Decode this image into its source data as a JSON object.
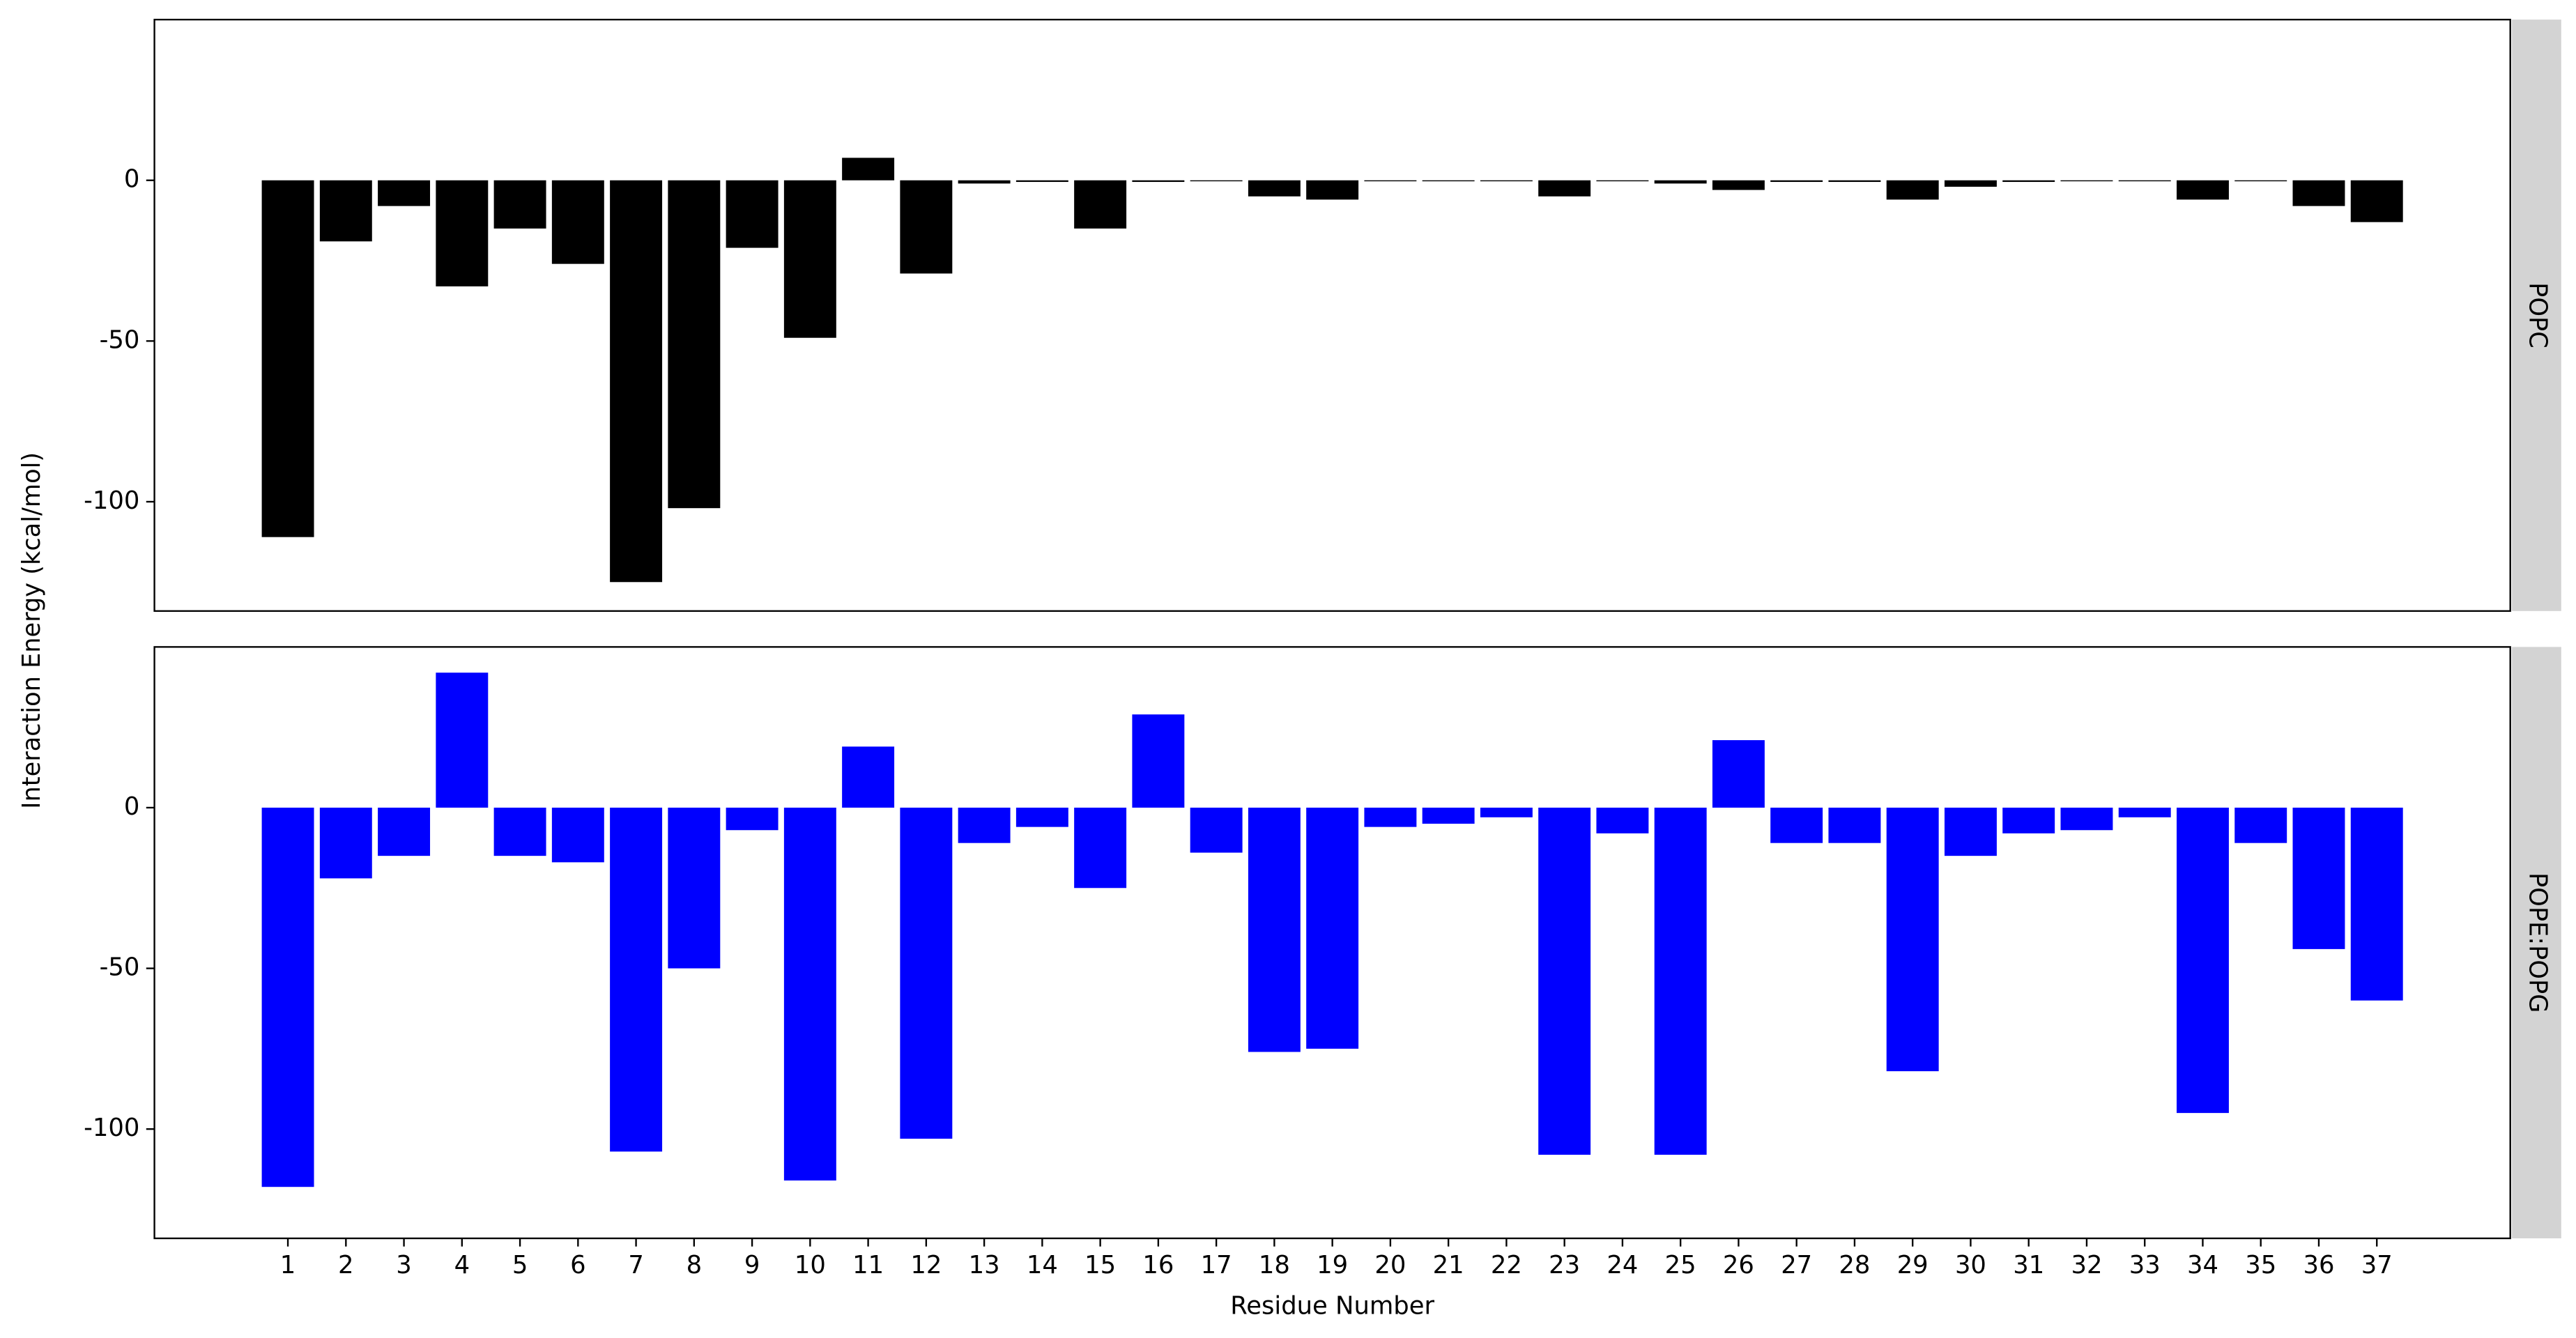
{
  "chart_data": [
    {
      "type": "bar",
      "panel_label": "POPC",
      "ylabel": "Interaction Energy (kcal/mol)",
      "color": "#000000",
      "x": [
        1,
        2,
        3,
        4,
        5,
        6,
        7,
        8,
        9,
        10,
        11,
        12,
        13,
        14,
        15,
        16,
        17,
        18,
        19,
        20,
        21,
        22,
        23,
        24,
        25,
        26,
        27,
        28,
        29,
        30,
        31,
        32,
        33,
        34,
        35,
        36,
        37
      ],
      "values": [
        -111,
        -19,
        -8,
        -33,
        -15,
        -26,
        -125,
        -102,
        -21,
        -49,
        7,
        -29,
        -1,
        -0.5,
        -15,
        -0.5,
        0,
        -5,
        -6,
        0,
        0,
        -0.3,
        -5,
        0,
        -1,
        -3,
        -0.5,
        -0.5,
        -6,
        -2,
        -0.5,
        0,
        -0.3,
        -6,
        -0.3,
        -8,
        -13
      ],
      "xlim": [
        -1.3,
        39.3
      ],
      "ylim": [
        -134,
        50
      ],
      "yticks": [
        -100,
        -50,
        0
      ]
    },
    {
      "type": "bar",
      "panel_label": "POPE:POPG",
      "xlabel": "Residue Number",
      "color": "#0000ff",
      "x": [
        1,
        2,
        3,
        4,
        5,
        6,
        7,
        8,
        9,
        10,
        11,
        12,
        13,
        14,
        15,
        16,
        17,
        18,
        19,
        20,
        21,
        22,
        23,
        24,
        25,
        26,
        27,
        28,
        29,
        30,
        31,
        32,
        33,
        34,
        35,
        36,
        37
      ],
      "values": [
        -118,
        -22,
        -15,
        42,
        -15,
        -17,
        -107,
        -50,
        -7,
        -116,
        19,
        -103,
        -11,
        -6,
        -25,
        29,
        -14,
        -76,
        -75,
        -6,
        -5,
        -3,
        -108,
        -8,
        -108,
        21,
        -11,
        -11,
        -82,
        -15,
        -8,
        -7,
        -3,
        -95,
        -11,
        -44,
        -60
      ],
      "xlim": [
        -1.3,
        39.3
      ],
      "ylim": [
        -134,
        50
      ],
      "yticks": [
        -100,
        -50,
        0
      ],
      "xticks": [
        1,
        2,
        3,
        4,
        5,
        6,
        7,
        8,
        9,
        10,
        11,
        12,
        13,
        14,
        15,
        16,
        17,
        18,
        19,
        20,
        21,
        22,
        23,
        24,
        25,
        26,
        27,
        28,
        29,
        30,
        31,
        32,
        33,
        34,
        35,
        36,
        37
      ]
    }
  ]
}
